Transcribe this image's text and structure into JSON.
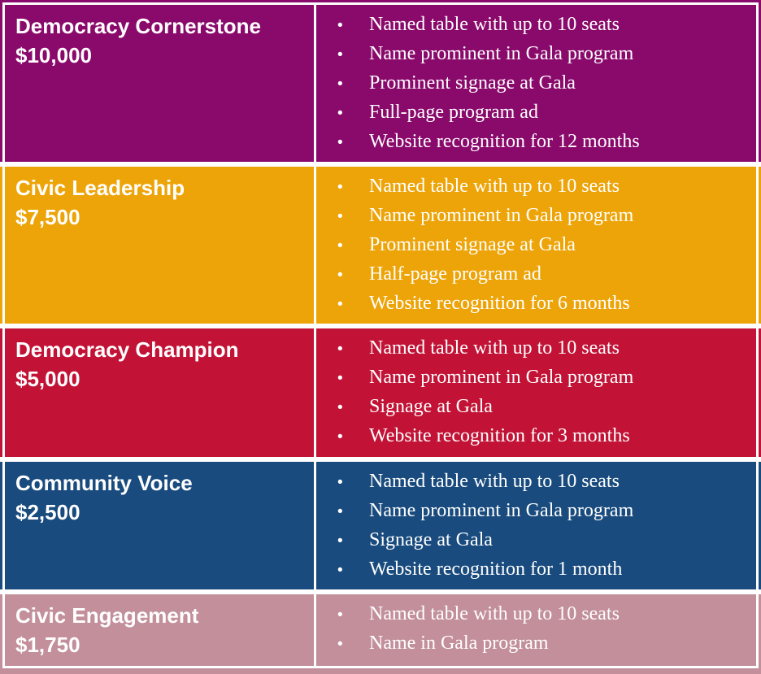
{
  "table": {
    "bullet_char": "•",
    "text_color": "#FFFFFF",
    "rows": [
      {
        "tier": "Democracy Cornerstone",
        "price": "$10,000",
        "color": "#8A0A6C",
        "benefits": [
          "Named table with up to 10 seats",
          "Name prominent in Gala program",
          "Prominent signage at Gala",
          "Full-page program ad",
          "Website recognition for 12 months"
        ]
      },
      {
        "tier": "Civic Leadership",
        "price": "$7,500",
        "color": "#EDA408",
        "benefits": [
          "Named table with up to 10 seats",
          "Name prominent in Gala program",
          "Prominent signage at Gala",
          "Half-page program ad",
          "Website recognition for 6 months"
        ]
      },
      {
        "tier": "Democracy Champion",
        "price": "$5,000",
        "color": "#C21336",
        "benefits": [
          "Named table with up to 10 seats",
          "Name prominent in Gala program",
          "Signage at Gala",
          "Website recognition for 3 months"
        ]
      },
      {
        "tier": "Community Voice",
        "price": "$2,500",
        "color": "#194B7E",
        "benefits": [
          "Named table with up to 10 seats",
          "Name prominent in Gala program",
          "Signage at Gala",
          "Website recognition for 1 month"
        ]
      },
      {
        "tier": "Civic Engagement",
        "price": "$1,750",
        "color": "#C28F9B",
        "benefits": [
          "Named table with up to 10 seats",
          "Name in Gala program"
        ]
      }
    ]
  }
}
